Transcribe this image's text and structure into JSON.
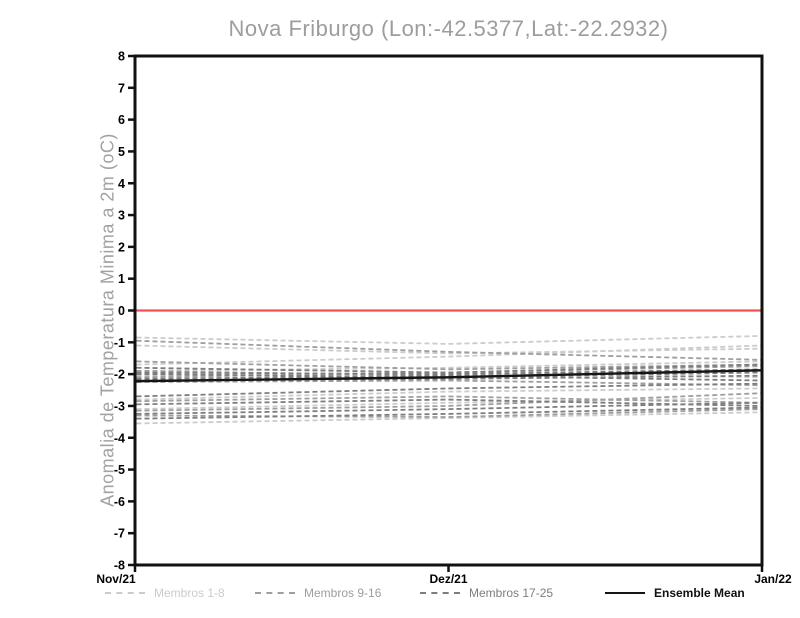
{
  "title": "Nova Friburgo (Lon:-42.5377,Lat:-22.2932)",
  "chart_data": {
    "type": "line",
    "title": "Nova Friburgo (Lon:-42.5377,Lat:-22.2932)",
    "xlabel": "",
    "ylabel": "Anomalia de Temperatura Minima a 2m (oC)",
    "ylim": [
      -8,
      8
    ],
    "yticks": [
      -8,
      -7,
      -6,
      -5,
      -4,
      -3,
      -2,
      -1,
      0,
      1,
      2,
      3,
      4,
      5,
      6,
      7,
      8
    ],
    "x_categories": [
      "Nov/21",
      "Dez/21",
      "Jan/22"
    ],
    "grid": false,
    "legend_position": "bottom",
    "frame_color": "#111111",
    "zero_line": {
      "value": 0,
      "color": "#f5514e"
    },
    "groups": [
      {
        "name": "Membros 1-8",
        "color": "#cbcbcb",
        "style": "dashed",
        "series": [
          [
            -0.85,
            -1.05,
            -0.8
          ],
          [
            -1.1,
            -1.35,
            -1.2
          ],
          [
            -1.7,
            -1.45,
            -1.1
          ],
          [
            -1.9,
            -1.8,
            -1.6
          ],
          [
            -2.05,
            -1.95,
            -2.1
          ],
          [
            -2.8,
            -2.55,
            -2.45
          ],
          [
            -3.1,
            -2.9,
            -2.75
          ],
          [
            -3.55,
            -3.38,
            -3.2
          ]
        ]
      },
      {
        "name": "Membros 9-16",
        "color": "#9e9e9e",
        "style": "dashed",
        "series": [
          [
            -0.95,
            -1.3,
            -1.55
          ],
          [
            -1.6,
            -1.85,
            -1.7
          ],
          [
            -1.9,
            -2.05,
            -1.9
          ],
          [
            -2.1,
            -1.95,
            -1.75
          ],
          [
            -2.25,
            -2.2,
            -2.35
          ],
          [
            -2.85,
            -2.7,
            -2.9
          ],
          [
            -3.15,
            -3.0,
            -2.6
          ],
          [
            -3.3,
            -3.35,
            -3.1
          ]
        ]
      },
      {
        "name": "Membros 17-25",
        "color": "#7d7d7d",
        "style": "dashed",
        "series": [
          [
            -1.8,
            -1.95,
            -1.7
          ],
          [
            -1.95,
            -2.0,
            -1.85
          ],
          [
            -2.0,
            -2.1,
            -1.95
          ],
          [
            -2.15,
            -2.05,
            -2.2
          ],
          [
            -2.2,
            -2.15,
            -2.05
          ],
          [
            -2.7,
            -2.45,
            -2.3
          ],
          [
            -2.95,
            -2.8,
            -3.0
          ],
          [
            -3.25,
            -3.1,
            -2.9
          ],
          [
            -3.4,
            -3.25,
            -3.05
          ]
        ]
      },
      {
        "name": "Ensemble Mean",
        "color": "#151515",
        "style": "solid",
        "series": [
          [
            -2.22,
            -2.1,
            -1.88
          ]
        ]
      }
    ]
  }
}
